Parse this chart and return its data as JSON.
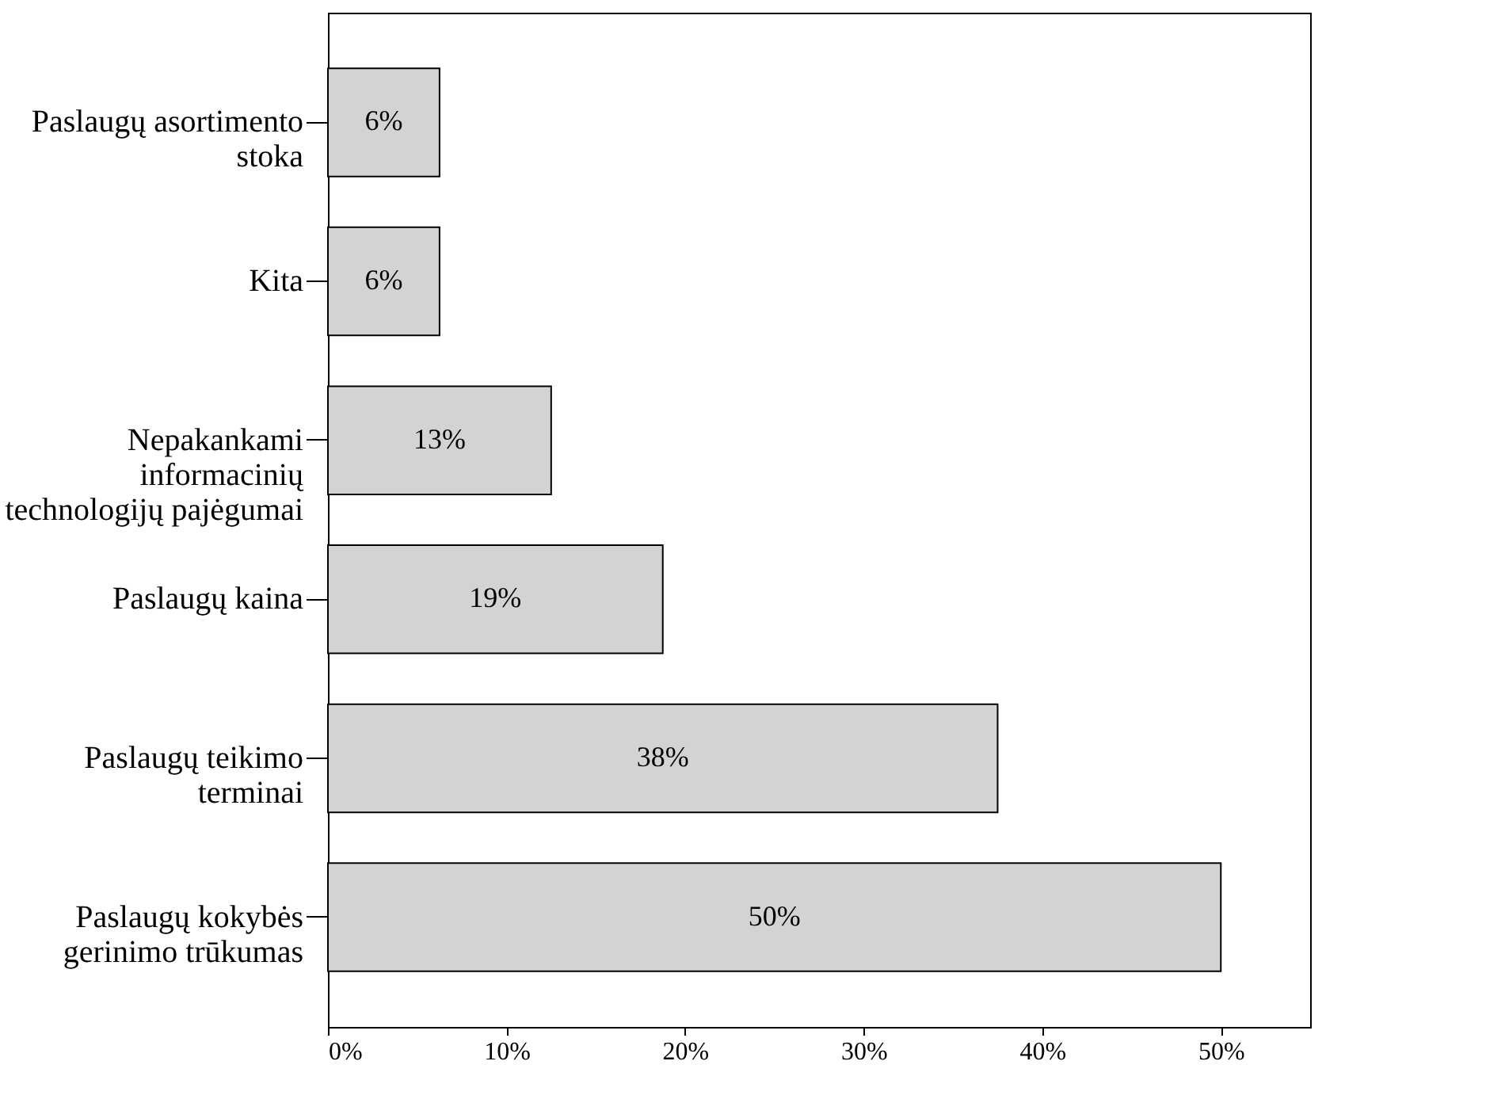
{
  "chart_data": {
    "type": "bar",
    "orientation": "horizontal",
    "categories": [
      "Paslaugų asortimento stoka",
      "Kita",
      "Nepakankami informacinių technologijų pajėgumai",
      "Paslaugų kaina",
      "Paslaugų teikimo terminai",
      "Paslaugų kokybės gerinimo trūkumas"
    ],
    "values": [
      6.25,
      6.25,
      12.5,
      18.75,
      37.5,
      50
    ],
    "value_labels": [
      "6%",
      "6%",
      "13%",
      "19%",
      "38%",
      "50%"
    ],
    "color": "#d3d3d3",
    "xlim": [
      0,
      55
    ],
    "xticks": [
      {
        "value": 0,
        "label": "0%"
      },
      {
        "value": 10,
        "label": "10%"
      },
      {
        "value": 20,
        "label": "20%"
      },
      {
        "value": 30,
        "label": "30%"
      },
      {
        "value": 40,
        "label": "40%"
      },
      {
        "value": 50,
        "label": "50%"
      }
    ],
    "grid": false
  }
}
